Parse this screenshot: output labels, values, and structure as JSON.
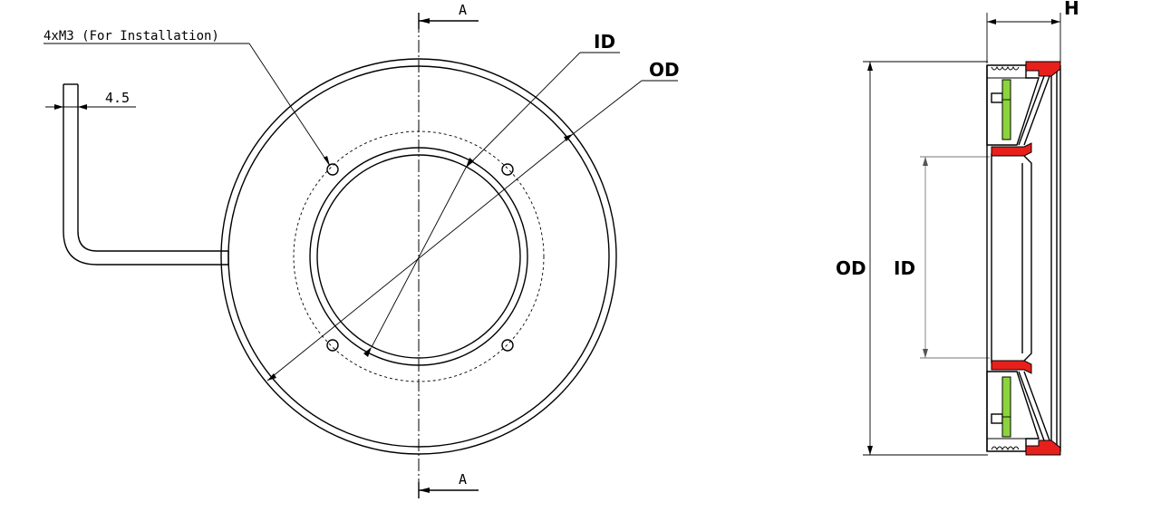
{
  "labels": {
    "section_top": "A",
    "section_bottom": "A",
    "installation_note": "4xM3 (For Installation)",
    "cable_dim": "4.5",
    "front_id": "ID",
    "front_od": "OD",
    "side_h": "H",
    "side_od": "OD",
    "side_id": "ID"
  },
  "colors": {
    "lines": "#000000",
    "seal_red": "#e8201c",
    "insert_green": "#8cd43c",
    "background": "#ffffff"
  }
}
